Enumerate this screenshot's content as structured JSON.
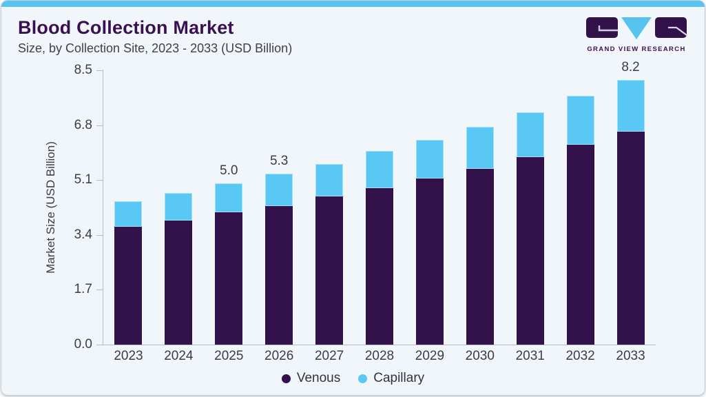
{
  "header": {
    "title": "Blood Collection Market",
    "subtitle": "Size, by Collection Site, 2023 - 2033 (USD Billion)"
  },
  "logo": {
    "caption": "GRAND VIEW RESEARCH"
  },
  "colors": {
    "accent_blue": "#56c4ef",
    "brand_purple": "#3a1053",
    "venous": "#33124b",
    "capillary": "#5ac8f4",
    "card_background": "#f1f6fa",
    "axis_gray": "#b6bfc7",
    "text_gray": "#3c3c44"
  },
  "chart_data": {
    "type": "bar",
    "stacked": true,
    "title": "Blood Collection Market Size, by Collection Site, 2023 - 2033 (USD Billion)",
    "categories": [
      "2023",
      "2024",
      "2025",
      "2026",
      "2027",
      "2028",
      "2029",
      "2030",
      "2031",
      "2032",
      "2033"
    ],
    "series": [
      {
        "name": "Venous",
        "color": "#33124b",
        "values": [
          3.65,
          3.85,
          4.1,
          4.3,
          4.6,
          4.85,
          5.15,
          5.45,
          5.8,
          6.2,
          6.6
        ]
      },
      {
        "name": "Capillary",
        "color": "#5ac8f4",
        "values": [
          0.8,
          0.85,
          0.9,
          1.0,
          1.0,
          1.15,
          1.2,
          1.3,
          1.4,
          1.5,
          1.6
        ]
      }
    ],
    "totals": [
      4.45,
      4.7,
      5.0,
      5.3,
      5.6,
      6.0,
      6.35,
      6.75,
      7.2,
      7.7,
      8.2
    ],
    "data_labels": {
      "2025": "5.0",
      "2026": "5.3",
      "2033": "8.2"
    },
    "xlabel": "",
    "ylabel": "Market Size (USD Billion)",
    "yticks": [
      "0.0",
      "1.7",
      "3.4",
      "5.1",
      "6.8",
      "8.5"
    ],
    "ylim": [
      0,
      8.5
    ],
    "grid": false,
    "legend_position": "bottom"
  }
}
